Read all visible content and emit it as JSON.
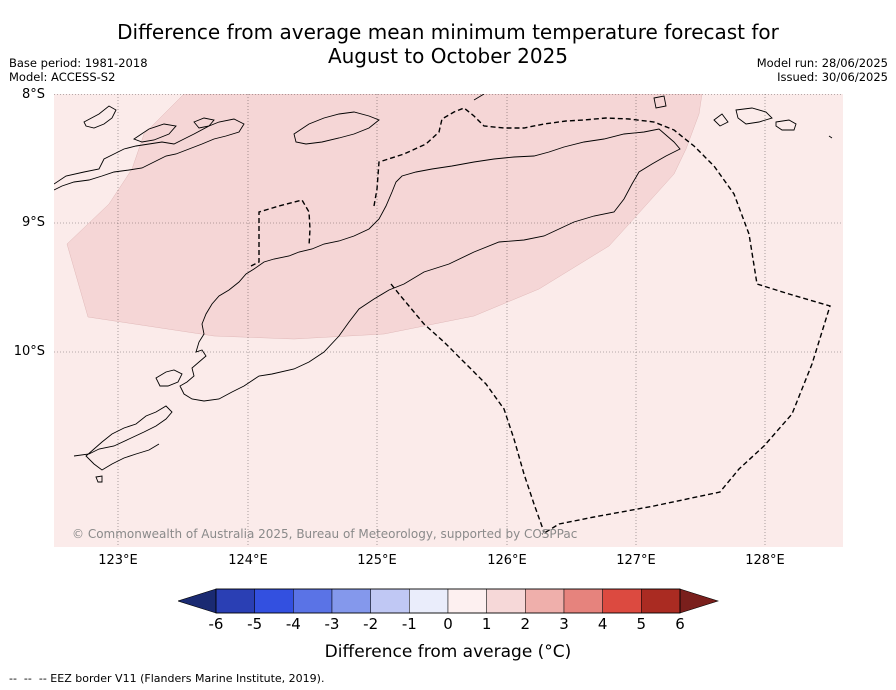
{
  "title_line1": "Difference from average mean minimum temperature forecast for",
  "title_line2": "August to October 2025",
  "meta_left": {
    "base_period": "Base period: 1981-2018",
    "model": "Model: ACCESS-S2"
  },
  "meta_right": {
    "model_run": "Model run: 28/06/2025",
    "issued": "Issued: 30/06/2025"
  },
  "lat_labels": [
    "8°S",
    "9°S",
    "10°S"
  ],
  "lon_labels": [
    "123°E",
    "124°E",
    "125°E",
    "126°E",
    "127°E",
    "128°E"
  ],
  "copyright": "© Commonwealth of Australia 2025, Bureau of Meteorology, supported by COSPPac",
  "colorbar": {
    "ticks": [
      "-6",
      "-5",
      "-4",
      "-3",
      "-2",
      "-1",
      "0",
      "1",
      "2",
      "3",
      "4",
      "5",
      "6"
    ],
    "colors": [
      "#1a2a72",
      "#2a3fb4",
      "#3350e0",
      "#5a73e6",
      "#8498ec",
      "#c0c8f4",
      "#eaedfb",
      "#fdf0f0",
      "#f6d8d8",
      "#efafab",
      "#e6837d",
      "#dc4a40",
      "#aa2b22",
      "#7a1f1c"
    ],
    "label": "Difference from average (°C)"
  },
  "map_fill": {
    "background_class": "0 to 1",
    "background_color": "#fbebea",
    "band_class": "1 to 2",
    "band_color": "#f5d6d6"
  },
  "footnote": "-- EEZ border V11 (Flanders Marine Institute, 2019)."
}
